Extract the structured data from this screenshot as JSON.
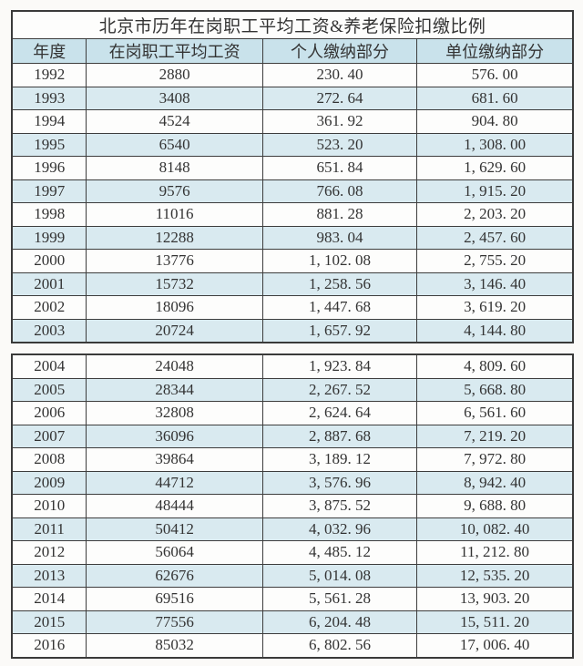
{
  "title": "北京市历年在岗职工平均工资&养老保险扣缴比例",
  "columns": [
    "年度",
    "在岗职工平均工资",
    "个人缴纳部分",
    "单位缴纳部分"
  ],
  "rows1": [
    [
      "1992",
      "2880",
      "230. 40",
      "576. 00"
    ],
    [
      "1993",
      "3408",
      "272. 64",
      "681. 60"
    ],
    [
      "1994",
      "4524",
      "361. 92",
      "904. 80"
    ],
    [
      "1995",
      "6540",
      "523. 20",
      "1, 308. 00"
    ],
    [
      "1996",
      "8148",
      "651. 84",
      "1, 629. 60"
    ],
    [
      "1997",
      "9576",
      "766. 08",
      "1, 915. 20"
    ],
    [
      "1998",
      "11016",
      "881. 28",
      "2, 203. 20"
    ],
    [
      "1999",
      "12288",
      "983. 04",
      "2, 457. 60"
    ],
    [
      "2000",
      "13776",
      "1, 102. 08",
      "2, 755. 20"
    ],
    [
      "2001",
      "15732",
      "1, 258. 56",
      "3, 146. 40"
    ],
    [
      "2002",
      "18096",
      "1, 447. 68",
      "3, 619. 20"
    ],
    [
      "2003",
      "20724",
      "1, 657. 92",
      "4, 144. 80"
    ]
  ],
  "rows2": [
    [
      "2004",
      "24048",
      "1, 923. 84",
      "4, 809. 60"
    ],
    [
      "2005",
      "28344",
      "2, 267. 52",
      "5, 668. 80"
    ],
    [
      "2006",
      "32808",
      "2, 624. 64",
      "6, 561. 60"
    ],
    [
      "2007",
      "36096",
      "2, 887. 68",
      "7, 219. 20"
    ],
    [
      "2008",
      "39864",
      "3, 189. 12",
      "7, 972. 80"
    ],
    [
      "2009",
      "44712",
      "3, 576. 96",
      "8, 942. 40"
    ],
    [
      "2010",
      "48444",
      "3, 875. 52",
      "9, 688. 80"
    ],
    [
      "2011",
      "50412",
      "4, 032. 96",
      "10, 082. 40"
    ],
    [
      "2012",
      "56064",
      "4, 485. 12",
      "11, 212. 80"
    ],
    [
      "2013",
      "62676",
      "5, 014. 08",
      "12, 535. 20"
    ],
    [
      "2014",
      "69516",
      "5, 561. 28",
      "13, 903. 20"
    ],
    [
      "2015",
      "77556",
      "6, 204. 48",
      "15, 511. 20"
    ],
    [
      "2016",
      "85032",
      "6, 802. 56",
      "17, 006. 40"
    ]
  ],
  "colors": {
    "page_background": "#fbfaf8",
    "header_background": "#c9e2eb",
    "alt_row_background": "#d9eaf0",
    "border": "#3d3d3d",
    "text": "#333333"
  },
  "chart_data": {
    "type": "table",
    "title": "北京市历年在岗职工平均工资&养老保险扣缴比例",
    "columns": [
      "年度",
      "在岗职工平均工资",
      "个人缴纳部分",
      "单位缴纳部分"
    ],
    "rows": [
      [
        1992,
        2880,
        230.4,
        576.0
      ],
      [
        1993,
        3408,
        272.64,
        681.6
      ],
      [
        1994,
        4524,
        361.92,
        904.8
      ],
      [
        1995,
        6540,
        523.2,
        1308.0
      ],
      [
        1996,
        8148,
        651.84,
        1629.6
      ],
      [
        1997,
        9576,
        766.08,
        1915.2
      ],
      [
        1998,
        11016,
        881.28,
        2203.2
      ],
      [
        1999,
        12288,
        983.04,
        2457.6
      ],
      [
        2000,
        13776,
        1102.08,
        2755.2
      ],
      [
        2001,
        15732,
        1258.56,
        3146.4
      ],
      [
        2002,
        18096,
        1447.68,
        3619.2
      ],
      [
        2003,
        20724,
        1657.92,
        4144.8
      ],
      [
        2004,
        24048,
        1923.84,
        4809.6
      ],
      [
        2005,
        28344,
        2267.52,
        5668.8
      ],
      [
        2006,
        32808,
        2624.64,
        6561.6
      ],
      [
        2007,
        36096,
        2887.68,
        7219.2
      ],
      [
        2008,
        39864,
        3189.12,
        7972.8
      ],
      [
        2009,
        44712,
        3576.96,
        8942.4
      ],
      [
        2010,
        48444,
        3875.52,
        9688.8
      ],
      [
        2011,
        50412,
        4032.96,
        10082.4
      ],
      [
        2012,
        56064,
        4485.12,
        11212.8
      ],
      [
        2013,
        62676,
        5014.08,
        12535.2
      ],
      [
        2014,
        69516,
        5561.28,
        13903.2
      ],
      [
        2015,
        77556,
        6204.48,
        15511.2
      ],
      [
        2016,
        85032,
        6802.56,
        17006.4
      ]
    ],
    "notes_layout": "table split into two bordered sections after 2003; alternating light-blue stripe on odd years"
  }
}
